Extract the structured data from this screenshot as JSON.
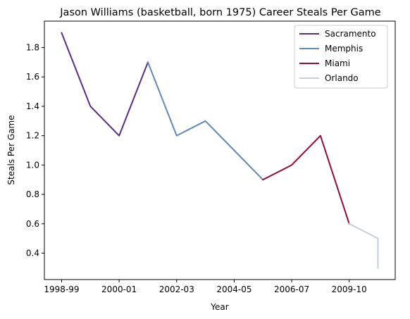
{
  "chart_data": {
    "type": "line",
    "title": "Jason Williams (basketball, born 1975) Career Steals Per Game",
    "xlabel": "Year",
    "ylabel": "Steals Per Game",
    "x_ticks": [
      "1998-99",
      "2000-01",
      "2002-03",
      "2004-05",
      "2006-07",
      "2009-10"
    ],
    "x_tick_positions": [
      0,
      2,
      4,
      6,
      8,
      10
    ],
    "xlim": [
      -0.6,
      11.6
    ],
    "ylim": [
      0.22,
      1.98
    ],
    "y_ticks": [
      0.4,
      0.6,
      0.8,
      1.0,
      1.2,
      1.4,
      1.6,
      1.8
    ],
    "legend_position": "top-right",
    "series": [
      {
        "name": "Sacramento",
        "color": "#5b2c83",
        "x": [
          0,
          1,
          2,
          3
        ],
        "y": [
          1.9,
          1.4,
          1.2,
          1.7
        ]
      },
      {
        "name": "Memphis",
        "color": "#5f88bb",
        "x": [
          3,
          4,
          5,
          6,
          7
        ],
        "y": [
          1.7,
          1.2,
          1.3,
          1.1,
          0.9
        ]
      },
      {
        "name": "Miami",
        "color": "#920a3e",
        "x": [
          7,
          8,
          9,
          10
        ],
        "y": [
          0.9,
          1.0,
          1.2,
          0.6
        ]
      },
      {
        "name": "Orlando",
        "color": "#c4ced4",
        "x": [
          10,
          11,
          11
        ],
        "y": [
          0.6,
          0.5,
          0.3
        ]
      }
    ]
  }
}
